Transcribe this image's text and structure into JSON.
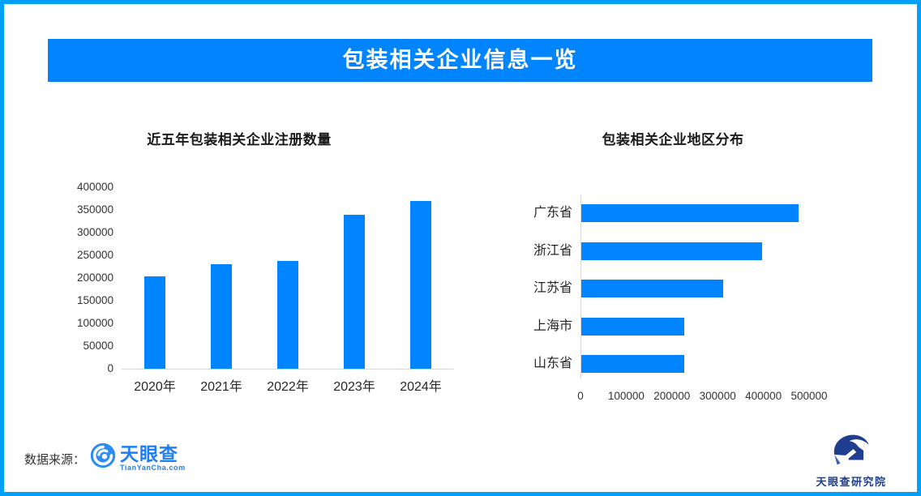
{
  "header": {
    "title": "包装相关企业信息一览"
  },
  "colors": {
    "frame_border": "#01a0f8",
    "banner_bg": "#0084ff",
    "bar_blue": "#0084ff",
    "axis_gray": "#d9d9d9",
    "tyc_blue": "#1f7ff2",
    "institute_navy": "#1f3e8f"
  },
  "chart_data": [
    {
      "type": "bar",
      "orientation": "vertical",
      "title": "近五年包装相关企业注册数量",
      "categories": [
        "2020年",
        "2021年",
        "2022年",
        "2023年",
        "2024年"
      ],
      "values": [
        203000,
        230000,
        237000,
        340000,
        370000
      ],
      "ylim": [
        0,
        400000
      ],
      "yticks": [
        0,
        50000,
        100000,
        150000,
        200000,
        250000,
        300000,
        350000,
        400000
      ],
      "bar_color": "#0084ff",
      "grid": false,
      "legend": "none"
    },
    {
      "type": "bar",
      "orientation": "horizontal",
      "title": "包装相关企业地区分布",
      "categories": [
        "广东省",
        "浙江省",
        "江苏省",
        "上海市",
        "山东省"
      ],
      "values": [
        476000,
        395000,
        310000,
        226000,
        225000
      ],
      "xlim": [
        0,
        500000
      ],
      "xticks": [
        0,
        100000,
        200000,
        300000,
        400000,
        500000
      ],
      "bar_color": "#0084ff",
      "grid": false,
      "legend": "none"
    }
  ],
  "footer": {
    "source_label": "数据来源：",
    "brand_name": "天眼查",
    "brand_domain": "TianYanCha.com",
    "institute_name": "天眼查研究院"
  }
}
